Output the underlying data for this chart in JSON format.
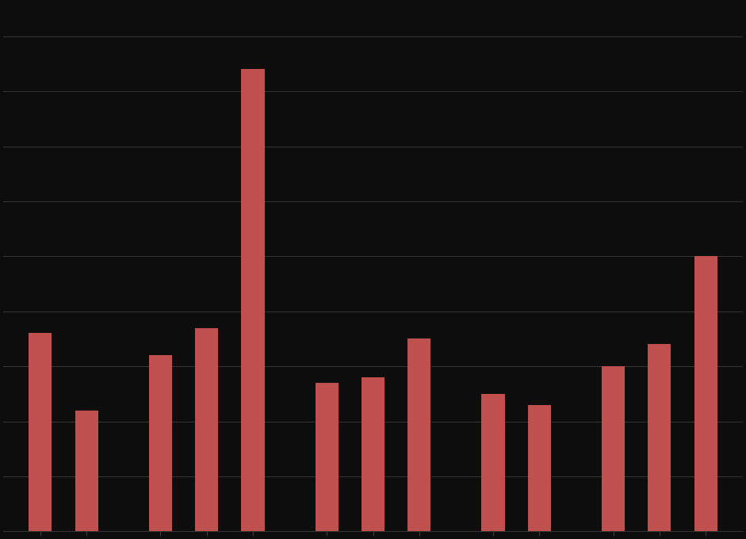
{
  "values": [
    1.8,
    1.1,
    1.6,
    1.85,
    4.2,
    1.35,
    1.4,
    1.75,
    1.25,
    1.15,
    1.5,
    1.7,
    2.5
  ],
  "bar_color": "#c0504d",
  "background_color": "#0d0d0d",
  "plot_area_color": "#0d0d0d",
  "gridline_color": "#3d3d3d",
  "ylim": [
    0,
    4.8
  ],
  "bar_width": 0.25,
  "title": "",
  "xlabel": "",
  "ylabel": ""
}
